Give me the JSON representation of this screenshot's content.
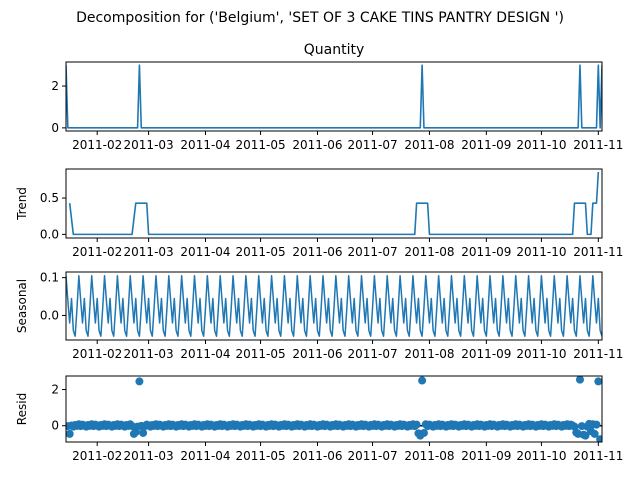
{
  "figure": {
    "suptitle": "Decomposition for ('Belgium', 'SET OF 3 CAKE TINS PANTRY DESIGN ')"
  },
  "colors": {
    "series": "#1f77b4",
    "axes": "#000000",
    "zero_line": "#000000"
  },
  "x_axis": {
    "ticks": [
      {
        "date": "2011-02-01",
        "label": "2011-02"
      },
      {
        "date": "2011-03-01",
        "label": "2011-03"
      },
      {
        "date": "2011-04-01",
        "label": "2011-04"
      },
      {
        "date": "2011-05-01",
        "label": "2011-05"
      },
      {
        "date": "2011-06-01",
        "label": "2011-06"
      },
      {
        "date": "2011-07-01",
        "label": "2011-07"
      },
      {
        "date": "2011-08-01",
        "label": "2011-08"
      },
      {
        "date": "2011-09-01",
        "label": "2011-09"
      },
      {
        "date": "2011-10-01",
        "label": "2011-10"
      },
      {
        "date": "2011-11-01",
        "label": "2011-11"
      }
    ]
  },
  "chart_data": [
    {
      "type": "line",
      "title": "Quantity",
      "ylabel": "",
      "ylim": [
        -0.15,
        3.15
      ],
      "yticks": [
        0,
        2
      ],
      "xlim": [
        "2011-01-15",
        "2011-11-03"
      ],
      "points": [
        {
          "x": "2011-01-15",
          "y": 3
        },
        {
          "x": "2011-01-16",
          "y": 0
        },
        {
          "x": "2011-02-23",
          "y": 0
        },
        {
          "x": "2011-02-24",
          "y": 3
        },
        {
          "x": "2011-02-25",
          "y": 0
        },
        {
          "x": "2011-07-27",
          "y": 0
        },
        {
          "x": "2011-07-28",
          "y": 3
        },
        {
          "x": "2011-07-29",
          "y": 0
        },
        {
          "x": "2011-10-21",
          "y": 0
        },
        {
          "x": "2011-10-22",
          "y": 3
        },
        {
          "x": "2011-10-23",
          "y": 0
        },
        {
          "x": "2011-10-31",
          "y": 0
        },
        {
          "x": "2011-11-01",
          "y": 3
        },
        {
          "x": "2011-11-02",
          "y": 0
        },
        {
          "x": "2011-11-03",
          "y": 3
        }
      ]
    },
    {
      "type": "line",
      "title": "",
      "ylabel": "Trend",
      "ylim": [
        -0.05,
        0.9
      ],
      "yticks": [
        0.0,
        0.5
      ],
      "xlim": [
        "2011-01-15",
        "2011-11-03"
      ],
      "points": [
        {
          "x": "2011-01-17",
          "y": 0.43
        },
        {
          "x": "2011-01-19",
          "y": 0
        },
        {
          "x": "2011-02-20",
          "y": 0
        },
        {
          "x": "2011-02-22",
          "y": 0.43
        },
        {
          "x": "2011-02-28",
          "y": 0.43
        },
        {
          "x": "2011-03-01",
          "y": 0
        },
        {
          "x": "2011-07-24",
          "y": 0
        },
        {
          "x": "2011-07-25",
          "y": 0.43
        },
        {
          "x": "2011-07-31",
          "y": 0.43
        },
        {
          "x": "2011-08-01",
          "y": 0
        },
        {
          "x": "2011-10-18",
          "y": 0
        },
        {
          "x": "2011-10-19",
          "y": 0.43
        },
        {
          "x": "2011-10-25",
          "y": 0.43
        },
        {
          "x": "2011-10-26",
          "y": 0
        },
        {
          "x": "2011-10-28",
          "y": 0
        },
        {
          "x": "2011-10-29",
          "y": 0.43
        },
        {
          "x": "2011-10-31",
          "y": 0.43
        },
        {
          "x": "2011-11-01",
          "y": 0.86
        }
      ]
    },
    {
      "type": "line",
      "title": "",
      "ylabel": "Seasonal",
      "ylim": [
        -0.065,
        0.115
      ],
      "yticks": [
        0.0,
        0.1
      ],
      "xlim": [
        "2011-01-15",
        "2011-11-03"
      ],
      "period_days": 7,
      "pattern": [
        0.105,
        0.04,
        -0.02,
        0.045,
        -0.04,
        -0.055,
        0.02
      ],
      "range": [
        "2011-01-15",
        "2011-11-03"
      ]
    },
    {
      "type": "scatter",
      "title": "",
      "ylabel": "Resid",
      "ylim": [
        -0.9,
        2.75
      ],
      "yticks": [
        0,
        2
      ],
      "xlim": [
        "2011-01-15",
        "2011-11-03"
      ],
      "zero_line": true,
      "baseline": {
        "range": [
          "2011-01-16",
          "2011-11-02"
        ],
        "values": [
          -0.02,
          0.06,
          0.01,
          -0.05,
          0.04,
          -0.01,
          0.08
        ]
      },
      "points": [
        {
          "x": "2011-01-17",
          "y": -0.45
        },
        {
          "x": "2011-02-21",
          "y": -0.45
        },
        {
          "x": "2011-02-22",
          "y": -0.35
        },
        {
          "x": "2011-02-24",
          "y": 2.45
        },
        {
          "x": "2011-02-26",
          "y": -0.4
        },
        {
          "x": "2011-07-26",
          "y": -0.42
        },
        {
          "x": "2011-07-27",
          "y": -0.55
        },
        {
          "x": "2011-07-28",
          "y": 2.5
        },
        {
          "x": "2011-07-29",
          "y": -0.4
        },
        {
          "x": "2011-10-20",
          "y": -0.38
        },
        {
          "x": "2011-10-21",
          "y": -0.45
        },
        {
          "x": "2011-10-22",
          "y": 2.55
        },
        {
          "x": "2011-10-24",
          "y": -0.5
        },
        {
          "x": "2011-10-25",
          "y": -0.55
        },
        {
          "x": "2011-10-27",
          "y": 0.1
        },
        {
          "x": "2011-10-28",
          "y": -0.3
        },
        {
          "x": "2011-10-30",
          "y": -0.45
        },
        {
          "x": "2011-11-01",
          "y": 2.45
        },
        {
          "x": "2011-11-02",
          "y": -0.75
        }
      ]
    }
  ]
}
